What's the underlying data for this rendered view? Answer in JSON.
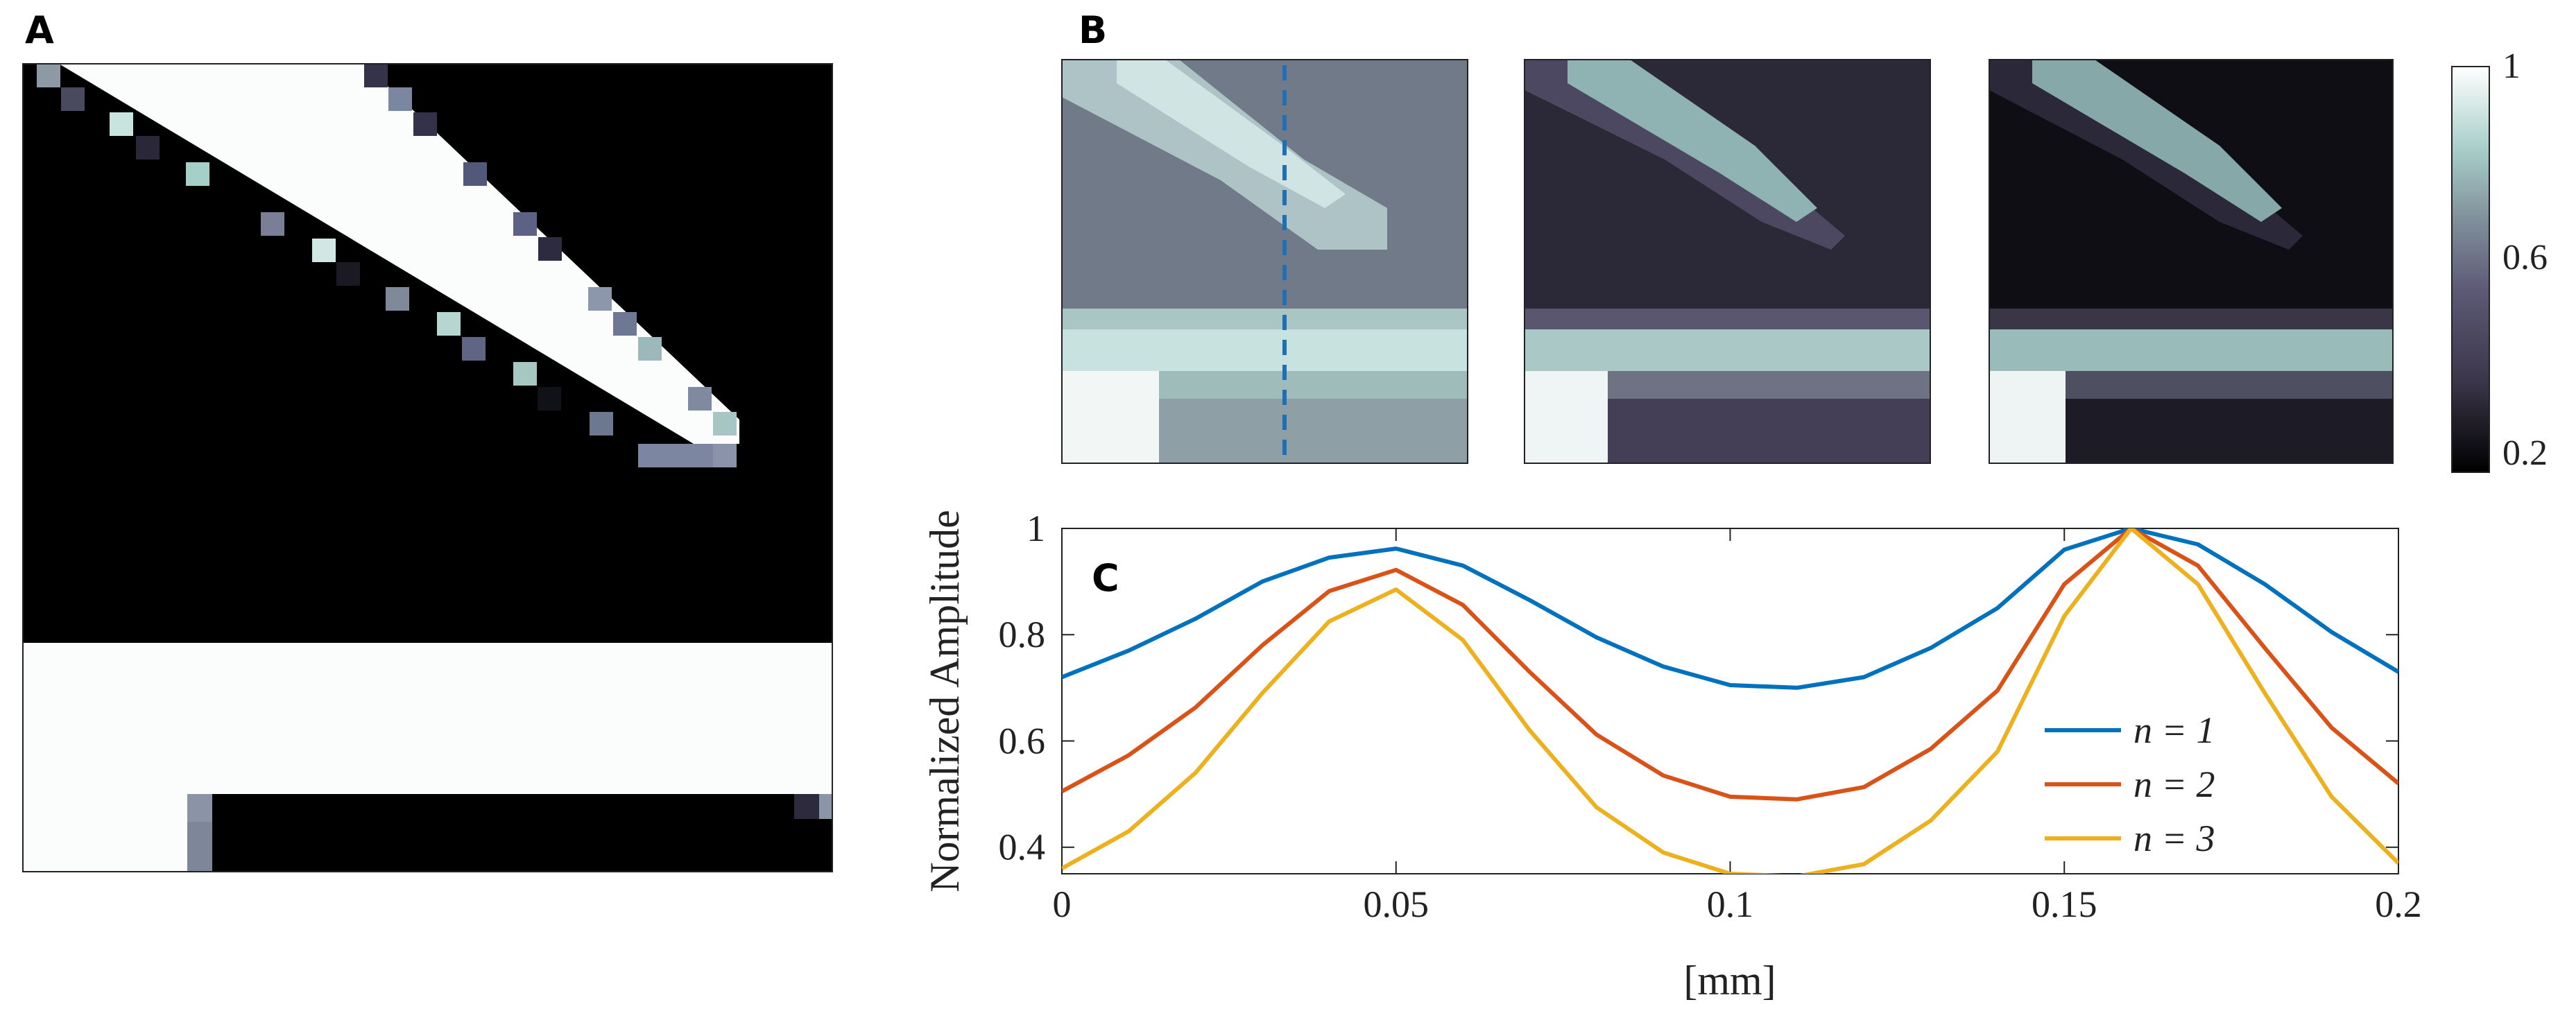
{
  "figure": {
    "panels": [
      {
        "letter": "A"
      },
      {
        "letter": "B"
      },
      {
        "letter": "C"
      }
    ]
  },
  "colorbar": {
    "colors": [
      "#000000",
      "#3a3548",
      "#5d5a77",
      "#7f8f9a",
      "#a9cfca",
      "#ffffff"
    ],
    "ticks": [
      "1",
      "0.6",
      "0.2"
    ]
  },
  "panel_b": {
    "dashed_line_color": "#1f6fb4"
  },
  "chart_data": {
    "type": "line",
    "title": "",
    "xlabel": "[mm]",
    "ylabel": "Normalized Amplitude",
    "xlim": [
      0,
      0.2
    ],
    "ylim": [
      0.35,
      1
    ],
    "grid": false,
    "legend_position": "right",
    "xtick_values": [
      0,
      0.05,
      0.1,
      0.15,
      0.2
    ],
    "xtick_labels": [
      "0",
      "0.05",
      "0.1",
      "0.15",
      "0.2"
    ],
    "ytick_values": [
      0.4,
      0.6,
      0.8,
      1
    ],
    "ytick_labels": [
      "0.4",
      "0.6",
      "0.8",
      "1"
    ],
    "x": [
      0,
      0.01,
      0.02,
      0.03,
      0.04,
      0.05,
      0.06,
      0.07,
      0.08,
      0.09,
      0.1,
      0.11,
      0.12,
      0.13,
      0.14,
      0.15,
      0.16,
      0.17,
      0.18,
      0.19,
      0.2
    ],
    "series": [
      {
        "name": "n = 1",
        "color": "#0072bd",
        "values": [
          0.72,
          0.77,
          0.83,
          0.9,
          0.945,
          0.962,
          0.93,
          0.865,
          0.795,
          0.74,
          0.705,
          0.7,
          0.72,
          0.775,
          0.85,
          0.96,
          1.0,
          0.97,
          0.895,
          0.805,
          0.73
        ]
      },
      {
        "name": "n = 2",
        "color": "#d95319",
        "values": [
          0.505,
          0.573,
          0.663,
          0.78,
          0.882,
          0.922,
          0.856,
          0.73,
          0.612,
          0.535,
          0.495,
          0.49,
          0.513,
          0.585,
          0.695,
          0.895,
          1.0,
          0.93,
          0.775,
          0.625,
          0.52
        ]
      },
      {
        "name": "n = 3",
        "color": "#edb120",
        "values": [
          0.36,
          0.43,
          0.54,
          0.69,
          0.825,
          0.885,
          0.79,
          0.62,
          0.475,
          0.39,
          0.35,
          0.345,
          0.368,
          0.45,
          0.58,
          0.835,
          1.0,
          0.895,
          0.69,
          0.495,
          0.37
        ]
      }
    ],
    "legend_labels": [
      "n = 1",
      "n = 2",
      "n = 3"
    ]
  }
}
